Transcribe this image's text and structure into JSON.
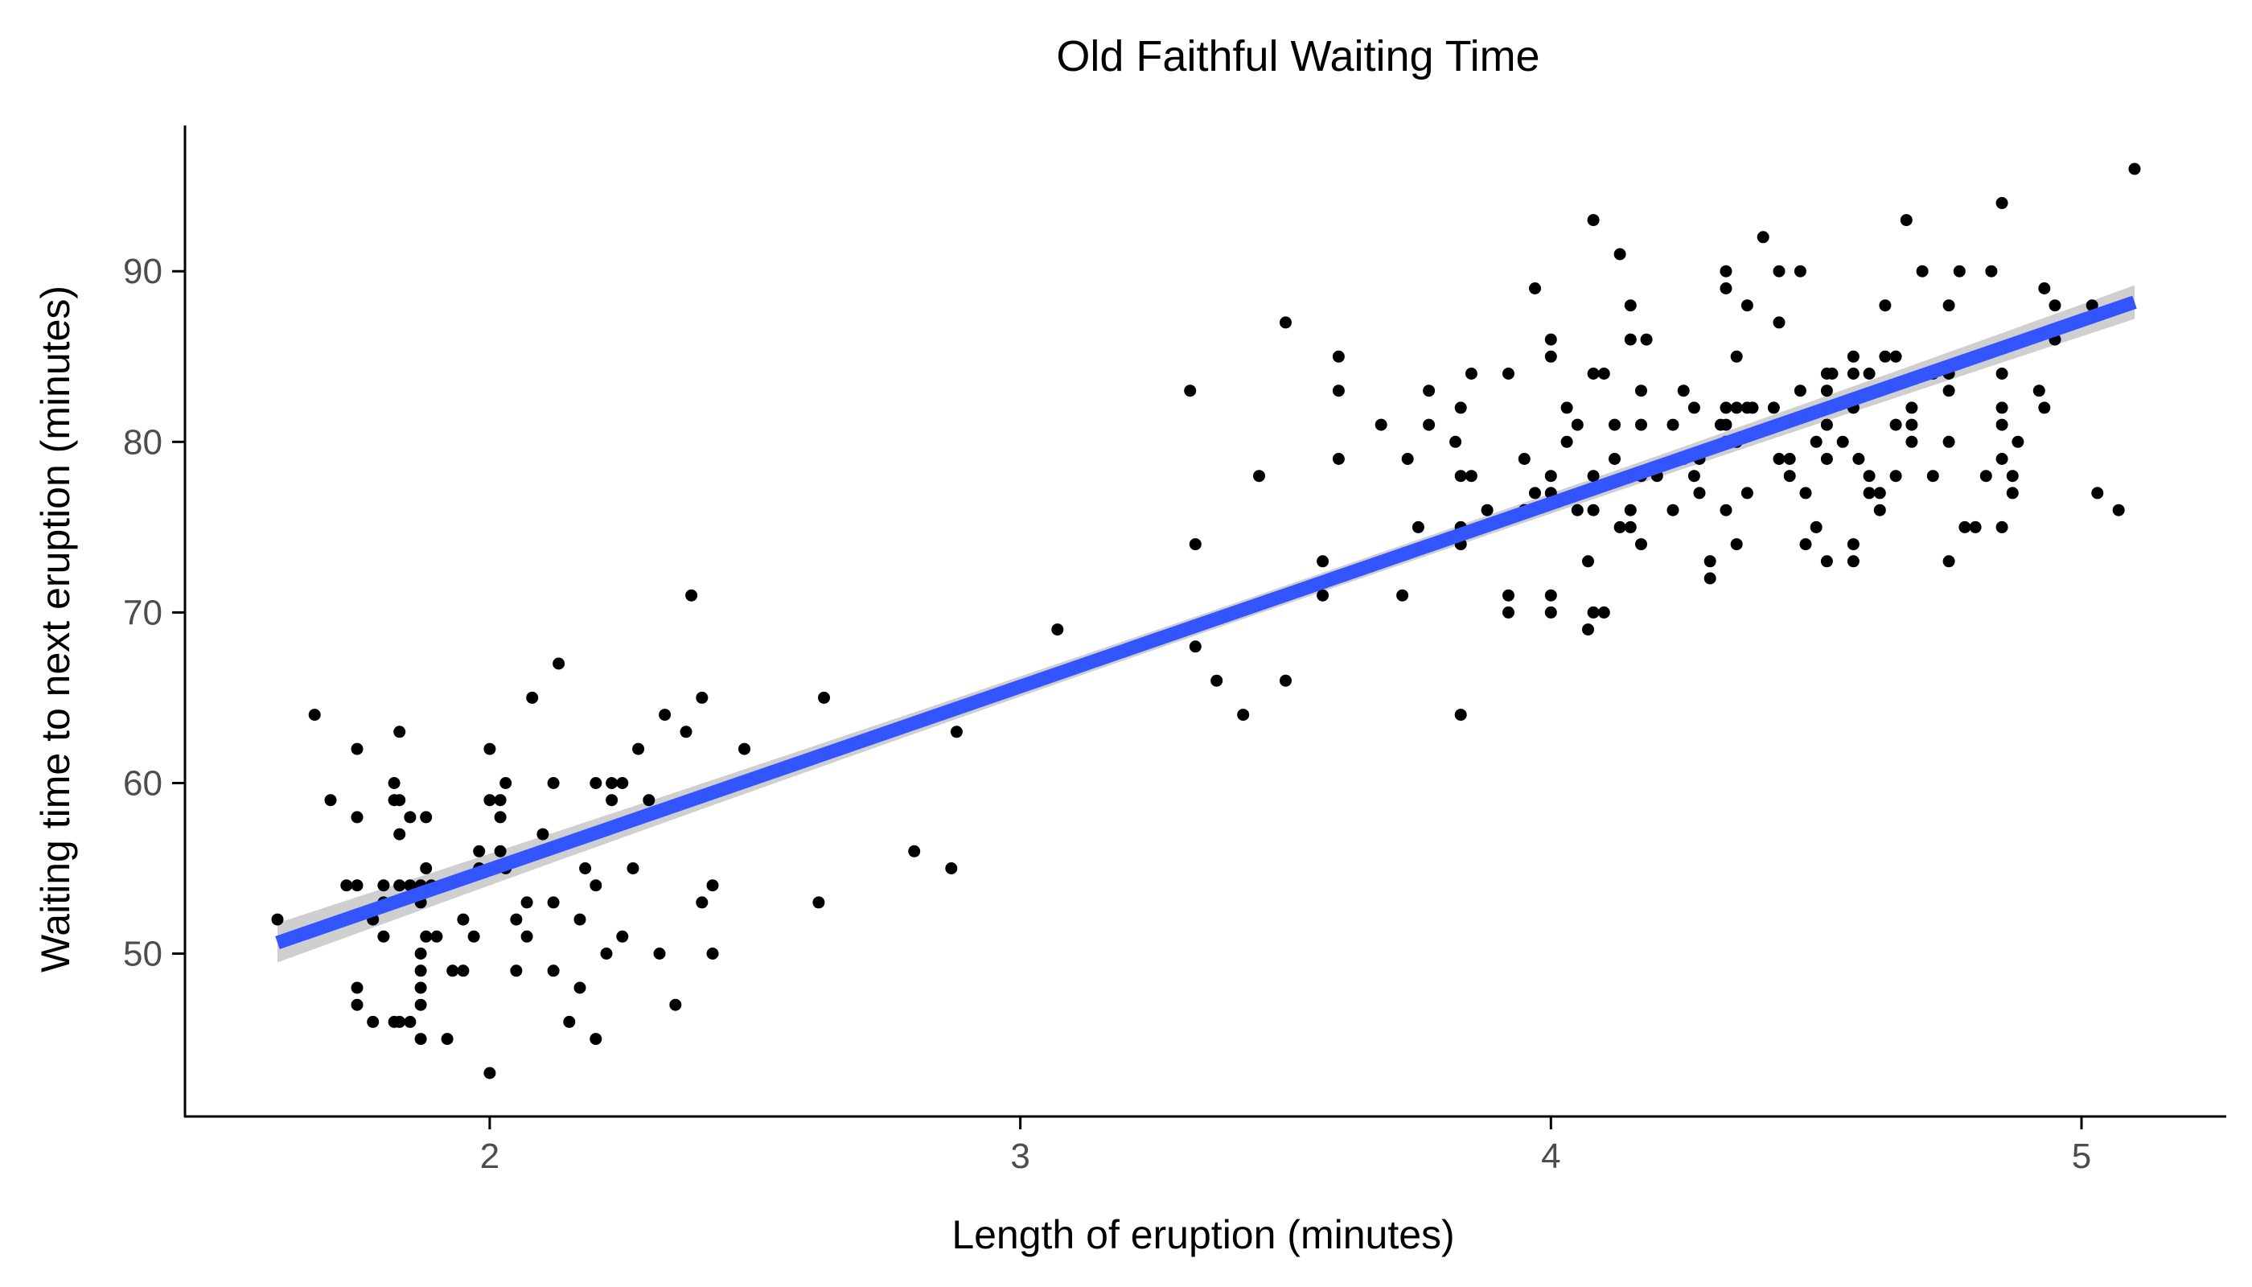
{
  "chart_data": {
    "type": "scatter",
    "title": "Old Faithful Waiting Time",
    "xlabel": "Length of eruption (minutes)",
    "ylabel": "Waiting time to next eruption (minutes)",
    "xlim": [
      1.6,
      5.1
    ],
    "ylim": [
      43,
      96
    ],
    "x_ticks": [
      2,
      3,
      4,
      5
    ],
    "y_ticks": [
      50,
      60,
      70,
      80,
      90
    ],
    "grid": false,
    "legend": "none",
    "colors": {
      "points": "#000000",
      "fit_line": "#3355ff",
      "confidence_band": "#cfcfcf",
      "axis": "#000000",
      "tick_label": "#4d4d4d"
    },
    "fit_line": {
      "method": "lm",
      "intercept": 33.47,
      "slope": 10.73,
      "x_range": [
        1.6,
        5.1
      ],
      "confidence_band": true
    },
    "points": [
      [
        1.6,
        52
      ],
      [
        1.67,
        64
      ],
      [
        1.7,
        59
      ],
      [
        1.73,
        54
      ],
      [
        1.75,
        54
      ],
      [
        1.75,
        62
      ],
      [
        1.75,
        58
      ],
      [
        1.75,
        48
      ],
      [
        1.75,
        47
      ],
      [
        1.78,
        46
      ],
      [
        1.78,
        52
      ],
      [
        1.8,
        53
      ],
      [
        1.8,
        51
      ],
      [
        1.8,
        54
      ],
      [
        1.82,
        59
      ],
      [
        1.82,
        60
      ],
      [
        1.82,
        46
      ],
      [
        1.83,
        46
      ],
      [
        1.83,
        57
      ],
      [
        1.83,
        59
      ],
      [
        1.83,
        63
      ],
      [
        1.83,
        54
      ],
      [
        1.85,
        58
      ],
      [
        1.85,
        46
      ],
      [
        1.85,
        54
      ],
      [
        1.87,
        54
      ],
      [
        1.87,
        53
      ],
      [
        1.87,
        50
      ],
      [
        1.87,
        49
      ],
      [
        1.87,
        48
      ],
      [
        1.87,
        47
      ],
      [
        1.87,
        45
      ],
      [
        1.88,
        51
      ],
      [
        1.88,
        58
      ],
      [
        1.88,
        55
      ],
      [
        1.89,
        54
      ],
      [
        1.9,
        51
      ],
      [
        1.92,
        45
      ],
      [
        1.93,
        49
      ],
      [
        1.95,
        52
      ],
      [
        1.95,
        49
      ],
      [
        1.97,
        51
      ],
      [
        1.98,
        56
      ],
      [
        1.98,
        55
      ],
      [
        2.0,
        62
      ],
      [
        2.0,
        59
      ],
      [
        2.0,
        43
      ],
      [
        2.02,
        59
      ],
      [
        2.02,
        58
      ],
      [
        2.02,
        56
      ],
      [
        2.03,
        55
      ],
      [
        2.03,
        60
      ],
      [
        2.05,
        52
      ],
      [
        2.05,
        49
      ],
      [
        2.07,
        53
      ],
      [
        2.07,
        51
      ],
      [
        2.08,
        65
      ],
      [
        2.1,
        57
      ],
      [
        2.12,
        60
      ],
      [
        2.12,
        53
      ],
      [
        2.12,
        49
      ],
      [
        2.13,
        67
      ],
      [
        2.15,
        46
      ],
      [
        2.17,
        52
      ],
      [
        2.17,
        48
      ],
      [
        2.18,
        55
      ],
      [
        2.2,
        45
      ],
      [
        2.2,
        60
      ],
      [
        2.2,
        54
      ],
      [
        2.22,
        50
      ],
      [
        2.23,
        59
      ],
      [
        2.23,
        60
      ],
      [
        2.25,
        51
      ],
      [
        2.25,
        60
      ],
      [
        2.27,
        55
      ],
      [
        2.28,
        62
      ],
      [
        2.3,
        59
      ],
      [
        2.32,
        50
      ],
      [
        2.33,
        64
      ],
      [
        2.35,
        47
      ],
      [
        2.37,
        63
      ],
      [
        2.38,
        71
      ],
      [
        2.4,
        65
      ],
      [
        2.4,
        53
      ],
      [
        2.42,
        54
      ],
      [
        2.42,
        50
      ],
      [
        2.48,
        62
      ],
      [
        2.62,
        53
      ],
      [
        2.63,
        65
      ],
      [
        2.8,
        56
      ],
      [
        2.87,
        55
      ],
      [
        2.88,
        63
      ],
      [
        3.07,
        69
      ],
      [
        3.32,
        83
      ],
      [
        3.33,
        74
      ],
      [
        3.33,
        68
      ],
      [
        3.37,
        66
      ],
      [
        3.42,
        64
      ],
      [
        3.45,
        78
      ],
      [
        3.5,
        87
      ],
      [
        3.5,
        66
      ],
      [
        3.57,
        73
      ],
      [
        3.57,
        71
      ],
      [
        3.6,
        85
      ],
      [
        3.6,
        83
      ],
      [
        3.6,
        79
      ],
      [
        3.68,
        81
      ],
      [
        3.72,
        71
      ],
      [
        3.73,
        79
      ],
      [
        3.75,
        75
      ],
      [
        3.77,
        83
      ],
      [
        3.77,
        81
      ],
      [
        3.82,
        80
      ],
      [
        3.83,
        82
      ],
      [
        3.83,
        78
      ],
      [
        3.83,
        75
      ],
      [
        3.83,
        74
      ],
      [
        3.83,
        64
      ],
      [
        3.85,
        84
      ],
      [
        3.85,
        78
      ],
      [
        3.88,
        76
      ],
      [
        3.92,
        84
      ],
      [
        3.92,
        71
      ],
      [
        3.92,
        70
      ],
      [
        3.95,
        79
      ],
      [
        3.95,
        76
      ],
      [
        3.97,
        89
      ],
      [
        3.97,
        77
      ],
      [
        4.0,
        86
      ],
      [
        4.0,
        85
      ],
      [
        4.0,
        78
      ],
      [
        4.0,
        77
      ],
      [
        4.0,
        71
      ],
      [
        4.0,
        70
      ],
      [
        4.03,
        82
      ],
      [
        4.03,
        80
      ],
      [
        4.05,
        81
      ],
      [
        4.05,
        76
      ],
      [
        4.07,
        73
      ],
      [
        4.07,
        69
      ],
      [
        4.08,
        93
      ],
      [
        4.08,
        84
      ],
      [
        4.08,
        78
      ],
      [
        4.08,
        76
      ],
      [
        4.08,
        70
      ],
      [
        4.1,
        84
      ],
      [
        4.1,
        70
      ],
      [
        4.12,
        81
      ],
      [
        4.12,
        79
      ],
      [
        4.13,
        91
      ],
      [
        4.13,
        75
      ],
      [
        4.15,
        88
      ],
      [
        4.15,
        86
      ],
      [
        4.15,
        76
      ],
      [
        4.15,
        75
      ],
      [
        4.17,
        83
      ],
      [
        4.17,
        81
      ],
      [
        4.17,
        78
      ],
      [
        4.17,
        74
      ],
      [
        4.18,
        86
      ],
      [
        4.2,
        78
      ],
      [
        4.23,
        81
      ],
      [
        4.23,
        76
      ],
      [
        4.25,
        83
      ],
      [
        4.25,
        79
      ],
      [
        4.27,
        82
      ],
      [
        4.27,
        78
      ],
      [
        4.28,
        79
      ],
      [
        4.28,
        77
      ],
      [
        4.3,
        73
      ],
      [
        4.3,
        72
      ],
      [
        4.32,
        81
      ],
      [
        4.33,
        90
      ],
      [
        4.33,
        89
      ],
      [
        4.33,
        82
      ],
      [
        4.33,
        81
      ],
      [
        4.33,
        80
      ],
      [
        4.33,
        76
      ],
      [
        4.35,
        85
      ],
      [
        4.35,
        82
      ],
      [
        4.35,
        80
      ],
      [
        4.35,
        74
      ],
      [
        4.37,
        88
      ],
      [
        4.37,
        82
      ],
      [
        4.37,
        77
      ],
      [
        4.38,
        82
      ],
      [
        4.4,
        92
      ],
      [
        4.42,
        82
      ],
      [
        4.43,
        90
      ],
      [
        4.43,
        87
      ],
      [
        4.43,
        79
      ],
      [
        4.45,
        79
      ],
      [
        4.45,
        78
      ],
      [
        4.47,
        90
      ],
      [
        4.47,
        83
      ],
      [
        4.48,
        77
      ],
      [
        4.48,
        74
      ],
      [
        4.5,
        75
      ],
      [
        4.5,
        80
      ],
      [
        4.52,
        84
      ],
      [
        4.52,
        83
      ],
      [
        4.52,
        82
      ],
      [
        4.52,
        81
      ],
      [
        4.52,
        79
      ],
      [
        4.52,
        73
      ],
      [
        4.53,
        84
      ],
      [
        4.55,
        80
      ],
      [
        4.57,
        85
      ],
      [
        4.57,
        84
      ],
      [
        4.57,
        82
      ],
      [
        4.57,
        74
      ],
      [
        4.57,
        73
      ],
      [
        4.58,
        79
      ],
      [
        4.6,
        84
      ],
      [
        4.6,
        78
      ],
      [
        4.6,
        77
      ],
      [
        4.62,
        77
      ],
      [
        4.62,
        76
      ],
      [
        4.63,
        85
      ],
      [
        4.63,
        88
      ],
      [
        4.65,
        85
      ],
      [
        4.65,
        81
      ],
      [
        4.65,
        78
      ],
      [
        4.67,
        93
      ],
      [
        4.68,
        82
      ],
      [
        4.68,
        81
      ],
      [
        4.68,
        80
      ],
      [
        4.7,
        90
      ],
      [
        4.72,
        84
      ],
      [
        4.72,
        78
      ],
      [
        4.75,
        88
      ],
      [
        4.75,
        84
      ],
      [
        4.75,
        83
      ],
      [
        4.75,
        80
      ],
      [
        4.75,
        73
      ],
      [
        4.77,
        90
      ],
      [
        4.78,
        75
      ],
      [
        4.8,
        75
      ],
      [
        4.82,
        78
      ],
      [
        4.83,
        90
      ],
      [
        4.85,
        94
      ],
      [
        4.85,
        84
      ],
      [
        4.85,
        82
      ],
      [
        4.85,
        81
      ],
      [
        4.85,
        79
      ],
      [
        4.85,
        75
      ],
      [
        4.87,
        78
      ],
      [
        4.87,
        77
      ],
      [
        4.88,
        80
      ],
      [
        4.9,
        86
      ],
      [
        4.92,
        83
      ],
      [
        4.93,
        82
      ],
      [
        4.93,
        89
      ],
      [
        4.95,
        88
      ],
      [
        4.95,
        86
      ],
      [
        5.02,
        88
      ],
      [
        5.03,
        77
      ],
      [
        5.07,
        76
      ],
      [
        5.1,
        96
      ]
    ]
  }
}
